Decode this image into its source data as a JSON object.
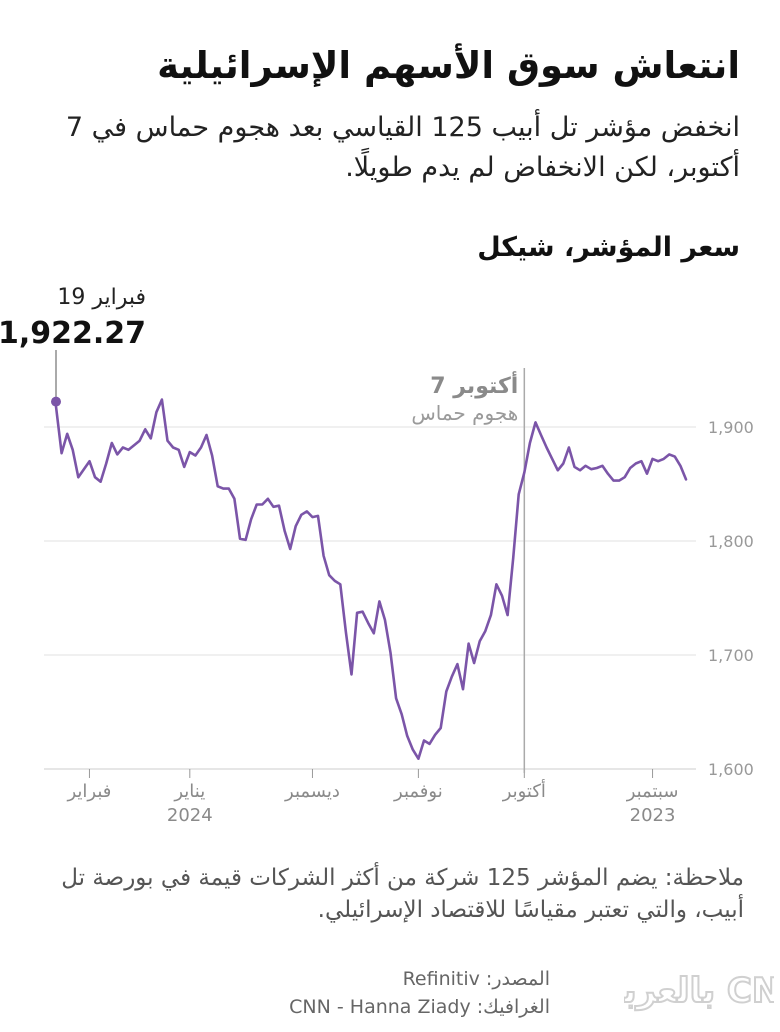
{
  "title": "انتعاش سوق الأسهم الإسرائيلية",
  "subtitle": "انخفض مؤشر تل أبيب 125 القياسي بعد هجوم حماس في 7 أكتوبر، لكن الانخفاض لم يدم طويلًا.",
  "unit_label": "سعر المؤشر، شيكل",
  "note": "ملاحظة: يضم المؤشر 125 شركة من أكثر الشركات قيمة في بورصة تل أبيب، والتي تعتبر مقياسًا للاقتصاد الإسرائيلي.",
  "source": "المصدر: Refinitiv",
  "graphic": "الغرافيك: CNN - Hanna Ziady",
  "logo_text": "بالعربية CNN",
  "colors": {
    "line": "#7b55a8",
    "grid": "#e2e2e2",
    "axis": "#999999",
    "annotation": "#aaaaaa"
  },
  "chart_data": {
    "type": "line",
    "y_ticks": [
      "1,900",
      "1,800",
      "1,700",
      "1,600"
    ],
    "y_tick_values": [
      1900,
      1800,
      1700,
      1600
    ],
    "ylim": [
      1600,
      1922.27
    ],
    "x_ticks": [
      {
        "label": "سبتمبر",
        "year": "2023",
        "index": 6
      },
      {
        "label": "أكتوبر",
        "year": "",
        "index": 29
      },
      {
        "label": "نوفمبر",
        "year": "",
        "index": 48
      },
      {
        "label": "ديسمبر",
        "year": "",
        "index": 67
      },
      {
        "label": "يناير",
        "year": "2024",
        "index": 89
      },
      {
        "label": "فبراير",
        "year": "",
        "index": 107
      }
    ],
    "x_direction": "right-to-left",
    "total_points": 114,
    "values": [
      1854,
      1866,
      1874,
      1876,
      1872,
      1870,
      1872,
      1859,
      1870,
      1868,
      1864,
      1856,
      1853,
      1853,
      1859,
      1866,
      1864,
      1863,
      1866,
      1862,
      1865,
      1882,
      1868,
      1862,
      1872,
      1882,
      1893,
      1904,
      1886,
      1860,
      1841,
      1785,
      1735,
      1752,
      1762,
      1735,
      1721,
      1712,
      1693,
      1710,
      1670,
      1692,
      1681,
      1668,
      1636,
      1630,
      1622,
      1625,
      1609,
      1617,
      1629,
      1648,
      1662,
      1702,
      1731,
      1747,
      1719,
      1728,
      1738,
      1737,
      1683,
      1720,
      1762,
      1765,
      1770,
      1787,
      1822,
      1821,
      1826,
      1823,
      1813,
      1793,
      1809,
      1831,
      1830,
      1837,
      1832,
      1832,
      1819,
      1801,
      1802,
      1837,
      1846,
      1846,
      1848,
      1875,
      1893,
      1882,
      1875,
      1878,
      1865,
      1880,
      1882,
      1888,
      1924,
      1913,
      1890,
      1898,
      1888,
      1884,
      1880,
      1882,
      1876,
      1886,
      1868,
      1852,
      1856,
      1870,
      1863,
      1856,
      1880,
      1894,
      1877,
      1918
    ],
    "annotations": [
      {
        "label": "7 أكتوبر",
        "sublabel": "هجوم حماس",
        "index": 29
      },
      {
        "label": "فبراير 19",
        "value": "1,922.27",
        "index": 113
      }
    ]
  }
}
